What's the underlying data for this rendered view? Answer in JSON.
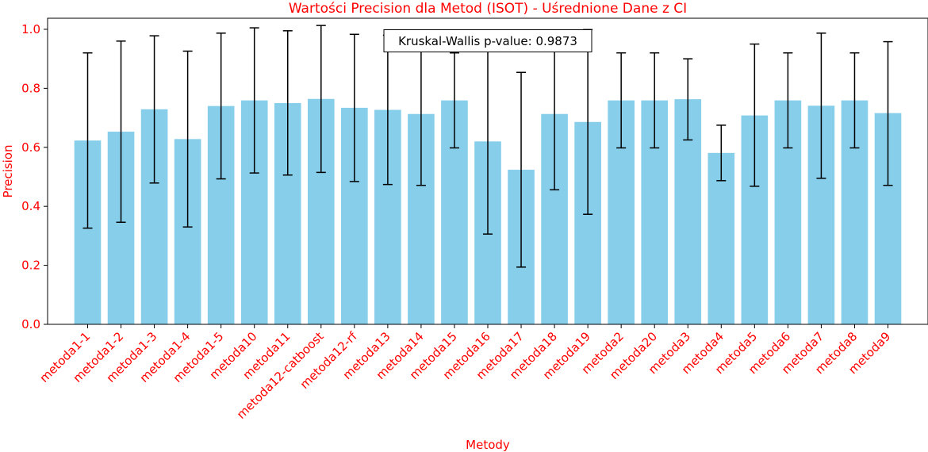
{
  "chart_data": {
    "type": "bar",
    "title": "Wartości Precision dla Metod (ISOT) - Uśrednione Dane z CI",
    "xlabel": "Metody",
    "ylabel": "Precision",
    "ylim": [
      0,
      1.0
    ],
    "yticks": [
      "0.0",
      "0.2",
      "0.4",
      "0.6",
      "0.8",
      "1.0"
    ],
    "annotation": "Kruskal-Wallis p-value: 0.9873",
    "categories": [
      "metoda1-1",
      "metoda1-2",
      "metoda1-3",
      "metoda1-4",
      "metoda1-5",
      "metoda10",
      "metoda11",
      "metoda12-catboost",
      "metoda12-rf",
      "metoda13",
      "metoda14",
      "metoda15",
      "metoda16",
      "metoda17",
      "metoda18",
      "metoda19",
      "metoda2",
      "metoda20",
      "metoda3",
      "metoda4",
      "metoda5",
      "metoda6",
      "metoda7",
      "metoda8",
      "metoda9"
    ],
    "values": [
      0.623,
      0.653,
      0.729,
      0.628,
      0.74,
      0.759,
      0.75,
      0.764,
      0.734,
      0.727,
      0.713,
      0.759,
      0.62,
      0.524,
      0.713,
      0.686,
      0.759,
      0.759,
      0.763,
      0.581,
      0.708,
      0.759,
      0.741,
      0.759,
      0.716
    ],
    "ci_low": [
      0.326,
      0.346,
      0.479,
      0.33,
      0.493,
      0.513,
      0.506,
      0.515,
      0.484,
      0.474,
      0.471,
      0.598,
      0.306,
      0.194,
      0.456,
      0.373,
      0.598,
      0.598,
      0.625,
      0.487,
      0.468,
      0.598,
      0.495,
      0.598,
      0.471
    ],
    "ci_high": [
      0.92,
      0.96,
      0.978,
      0.926,
      0.987,
      1.005,
      0.995,
      1.013,
      0.983,
      0.98,
      0.955,
      0.92,
      0.935,
      0.854,
      0.97,
      0.999,
      0.92,
      0.92,
      0.9,
      0.675,
      0.95,
      0.92,
      0.987,
      0.92,
      0.958
    ],
    "colors": {
      "bar": "#87ceeb",
      "error": "#000000",
      "text": "#ff0000",
      "axis": "#000000"
    },
    "grid": false
  }
}
